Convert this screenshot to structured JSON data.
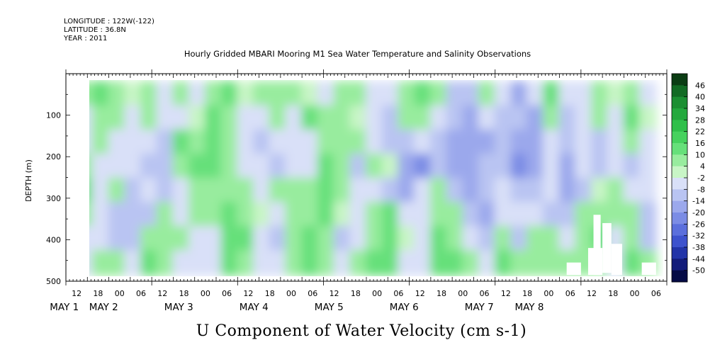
{
  "header": {
    "longitude": "LONGITUDE : 122W(-122)",
    "latitude": "LATITUDE : 36.8N",
    "year": "YEAR : 2011"
  },
  "chart_data": {
    "type": "heatmap",
    "title": "Hourly Gridded MBARI Mooring M1 Sea Water Temperature and Salinity Observations",
    "colorbar_title": "U Component of Water Velocity (cm s-1)",
    "ylabel": "DEPTH (m)",
    "xlabel": "",
    "y_axis": {
      "ticks": [
        100,
        200,
        300,
        400,
        500
      ],
      "range": [
        0,
        500
      ],
      "inverted": true
    },
    "x_axis": {
      "range_hours": [
        0,
        168
      ],
      "hour_ticks": [
        "12",
        "18",
        "00",
        "06",
        "12",
        "18",
        "00",
        "06",
        "12",
        "18",
        "00",
        "06",
        "12",
        "18",
        "00",
        "06",
        "12",
        "18",
        "00",
        "06",
        "12",
        "18",
        "00",
        "06",
        "12",
        "18",
        "00",
        "06"
      ],
      "day_labels": [
        "MAY 1",
        "MAY 2",
        "MAY 3",
        "MAY 4",
        "MAY 5",
        "MAY 6",
        "MAY 7",
        "MAY 8"
      ],
      "day_label_hours": [
        -4.5,
        6.5,
        27.5,
        48.5,
        69.5,
        90.5,
        111.5,
        125.5
      ]
    },
    "data_extent": {
      "hours": [
        3,
        165
      ],
      "depth": [
        20,
        485
      ]
    },
    "colorbar": {
      "levels": [
        "46",
        "40",
        "34",
        "28",
        "22",
        "16",
        "10",
        "4",
        "-2",
        "-8",
        "-14",
        "-20",
        "-26",
        "-32",
        "-38",
        "-44",
        "-50"
      ],
      "colors": [
        "#0b3d14",
        "#126b24",
        "#1b8f32",
        "#23a93d",
        "#2fc04a",
        "#46d25e",
        "#66e07a",
        "#98ec9e",
        "#c8f5c6",
        "#d9e0f8",
        "#b9c4f2",
        "#9ba8ec",
        "#7b8ce5",
        "#5b6fdc",
        "#3d52cd",
        "#2234a8",
        "#121c7a",
        "#050b45"
      ]
    },
    "u_velocity_cm_s": [
      [
        8,
        10,
        8,
        -2,
        6,
        -8,
        4,
        -6,
        8,
        10,
        -2,
        6,
        8,
        4,
        2,
        -4,
        6,
        8,
        -6,
        -8,
        6,
        10,
        4,
        -12,
        -14,
        8,
        -6,
        -16,
        -4,
        10,
        -6,
        -8,
        6,
        2,
        4,
        -4
      ],
      [
        -4,
        6,
        6,
        -4,
        6,
        -8,
        -4,
        2,
        12,
        4,
        -6,
        -8,
        4,
        -6,
        10,
        6,
        8,
        -2,
        -8,
        -12,
        8,
        4,
        -8,
        -14,
        -16,
        -4,
        -14,
        -12,
        -18,
        6,
        -10,
        -6,
        4,
        -4,
        10,
        -2
      ],
      [
        -8,
        4,
        -4,
        -8,
        -6,
        -10,
        10,
        8,
        14,
        6,
        -8,
        -10,
        -6,
        -8,
        -4,
        8,
        4,
        6,
        -4,
        -10,
        -14,
        -6,
        -12,
        -20,
        -18,
        -16,
        -14,
        -20,
        -16,
        -8,
        -14,
        -4,
        -10,
        -8,
        6,
        -6
      ],
      [
        6,
        -6,
        -8,
        -4,
        -10,
        -14,
        6,
        10,
        12,
        8,
        -6,
        -8,
        -12,
        -4,
        -6,
        12,
        6,
        -10,
        4,
        2,
        -20,
        -26,
        -10,
        -18,
        -20,
        -12,
        -10,
        -22,
        -18,
        -4,
        -16,
        -8,
        -12,
        -6,
        -10,
        -8
      ],
      [
        10,
        -4,
        8,
        -12,
        -8,
        -12,
        -4,
        6,
        8,
        4,
        6,
        -4,
        8,
        6,
        4,
        10,
        6,
        -8,
        -6,
        -12,
        -18,
        -8,
        4,
        -12,
        -16,
        -10,
        -8,
        -10,
        -14,
        -6,
        -16,
        -12,
        2,
        6,
        -8,
        -4
      ],
      [
        8,
        -6,
        -10,
        -14,
        -10,
        4,
        -6,
        4,
        6,
        10,
        8,
        2,
        -4,
        8,
        6,
        12,
        -2,
        -6,
        6,
        10,
        -8,
        -6,
        8,
        4,
        -14,
        -20,
        -4,
        -6,
        -6,
        -10,
        -14,
        8,
        4,
        8,
        4,
        -10
      ],
      [
        -6,
        -8,
        -10,
        -12,
        6,
        8,
        6,
        -4,
        -8,
        12,
        10,
        -6,
        -10,
        6,
        10,
        8,
        -10,
        -4,
        8,
        12,
        -2,
        -8,
        10,
        6,
        -6,
        -14,
        8,
        -10,
        6,
        4,
        -4,
        6,
        10,
        -6,
        8,
        -12
      ],
      [
        -4,
        4,
        6,
        -8,
        10,
        6,
        -4,
        -6,
        -6,
        14,
        8,
        -8,
        -6,
        8,
        12,
        6,
        -8,
        4,
        10,
        14,
        -6,
        -4,
        12,
        10,
        8,
        -6,
        10,
        6,
        8,
        6,
        6,
        8,
        6,
        -8,
        10,
        4
      ]
    ]
  }
}
